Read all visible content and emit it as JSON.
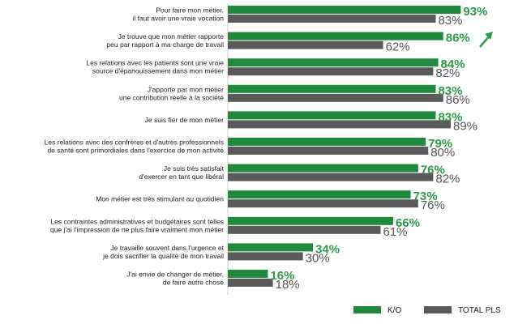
{
  "chart_data": {
    "type": "bar",
    "orientation": "horizontal",
    "categories": [
      [
        "Pour faire mon métier,",
        "il faut avoir une vraie vocation"
      ],
      [
        "Je trouve que mon métier rapporte",
        "peu par rapport à ma charge de travail"
      ],
      [
        "Les relations avec les patients sont une vraie",
        "source d'épanouissement dans mon métier"
      ],
      [
        "J'apporte par mon métier",
        "une contribution réelle à la société"
      ],
      [
        "Je suis fier de mon métier"
      ],
      [
        "Les relations avec des confrères et d'autres professionnels",
        "de santé sont primordiales dans l'exercice de mon activité"
      ],
      [
        "Je suis très satisfait",
        "d'exercer en tant que libéral"
      ],
      [
        "Mon métier est très stimulant au quotidien"
      ],
      [
        "Les contraintes administratives et budgétaires sont telles",
        "que j'ai l'impression de ne plus faire vraiment mon métier"
      ],
      [
        "Je travaille souvent dans l'urgence et",
        "je dois sacrifier la qualité de mon travail"
      ],
      [
        "J'ai envie de changer de métier,",
        "de faire autre chose"
      ]
    ],
    "series": [
      {
        "name": "K/O",
        "color": "#1f8a3c",
        "values": [
          93,
          86,
          84,
          83,
          83,
          79,
          76,
          73,
          66,
          34,
          16
        ]
      },
      {
        "name": "TOTAL PLS",
        "color": "#5a5a5a",
        "values": [
          83,
          62,
          82,
          86,
          89,
          80,
          82,
          76,
          61,
          30,
          18
        ]
      }
    ],
    "value_suffix": "%",
    "xlim": [
      0,
      100
    ],
    "grid": false,
    "legend_position": "bottom-right",
    "annotation": "arrow-up-right-icon"
  }
}
